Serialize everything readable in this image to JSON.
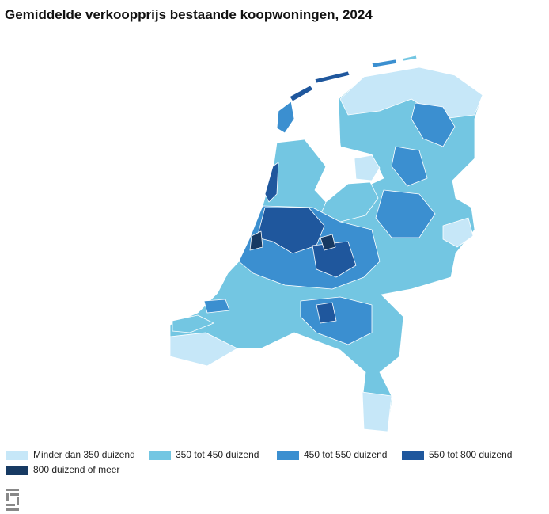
{
  "title": "Gemiddelde verkoopprijs bestaande koopwoningen, 2024",
  "legend": [
    {
      "label": "Minder dan 350 duizend",
      "color": "#c6e7f8"
    },
    {
      "label": "350 tot 450 duizend",
      "color": "#73c6e2"
    },
    {
      "label": "450 tot 550 duizend",
      "color": "#3b8fd0"
    },
    {
      "label": "550 tot 800 duizend",
      "color": "#1f579d"
    },
    {
      "label": "800 duizend of meer",
      "color": "#173a63"
    }
  ]
}
